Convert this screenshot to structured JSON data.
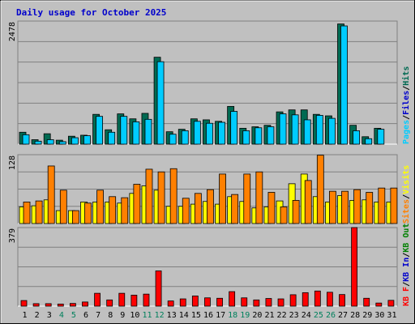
{
  "title": "Daily usage for October 2025",
  "colors": {
    "background": "#c0c0c0",
    "title": "#0000cc",
    "grid": "#808080",
    "pages": "#006a52",
    "files": "#0000cc",
    "hits": "#00ccff",
    "visits": "#ffff00",
    "sites": "#ff8000",
    "kbin": "#0000cc",
    "kbout": "#008000",
    "kbf": "#ff0000",
    "weekday_label": "#000000",
    "weekend_label": "#00805c"
  },
  "chart_data": [
    {
      "type": "bar",
      "title": "Daily usage for October 2025",
      "categories": [
        "1",
        "2",
        "3",
        "4",
        "5",
        "6",
        "7",
        "8",
        "9",
        "10",
        "11",
        "12",
        "13",
        "14",
        "15",
        "16",
        "17",
        "18",
        "19",
        "20",
        "21",
        "22",
        "23",
        "24",
        "25",
        "26",
        "27",
        "28",
        "29",
        "30",
        "31"
      ],
      "weekend_days": [
        "4",
        "5",
        "11",
        "12",
        "18",
        "19",
        "25",
        "26"
      ],
      "y_max_label": "2478",
      "ylim": [
        0,
        2478
      ],
      "legend": [
        "Pages",
        "Files",
        "Hits"
      ],
      "series": [
        {
          "name": "Pages",
          "values": [
            240,
            90,
            210,
            80,
            160,
            180,
            600,
            290,
            610,
            510,
            620,
            1750,
            250,
            300,
            510,
            490,
            460,
            760,
            320,
            350,
            380,
            650,
            690,
            690,
            600,
            570,
            2420,
            380,
            150,
            320,
            0
          ]
        },
        {
          "name": "Hits",
          "values": [
            190,
            60,
            90,
            50,
            130,
            170,
            560,
            240,
            560,
            450,
            500,
            1660,
            200,
            270,
            460,
            420,
            440,
            660,
            270,
            330,
            350,
            610,
            590,
            490,
            580,
            520,
            2380,
            270,
            110,
            300,
            0
          ]
        }
      ]
    },
    {
      "type": "bar",
      "categories": [
        "1",
        "2",
        "3",
        "4",
        "5",
        "6",
        "7",
        "8",
        "9",
        "10",
        "11",
        "12",
        "13",
        "14",
        "15",
        "16",
        "17",
        "18",
        "19",
        "20",
        "21",
        "22",
        "23",
        "24",
        "25",
        "26",
        "27",
        "28",
        "29",
        "30",
        "31"
      ],
      "y_max_label": "128",
      "ylim": [
        0,
        128
      ],
      "legend": [
        "Visits",
        "Sites"
      ],
      "series": [
        {
          "name": "Visits",
          "values": [
            31,
            33,
            44,
            24,
            24,
            40,
            40,
            40,
            38,
            56,
            70,
            62,
            32,
            32,
            36,
            41,
            36,
            50,
            41,
            29,
            31,
            42,
            74,
            92,
            50,
            40,
            52,
            43,
            44,
            40,
            40
          ]
        },
        {
          "name": "Sites",
          "values": [
            40,
            42,
            107,
            62,
            24,
            38,
            62,
            50,
            48,
            73,
            101,
            96,
            102,
            47,
            56,
            63,
            92,
            54,
            92,
            96,
            58,
            31,
            43,
            80,
            127,
            60,
            60,
            63,
            58,
            66,
            66
          ]
        }
      ]
    },
    {
      "type": "bar",
      "categories": [
        "1",
        "2",
        "3",
        "4",
        "5",
        "6",
        "7",
        "8",
        "9",
        "10",
        "11",
        "12",
        "13",
        "14",
        "15",
        "16",
        "17",
        "18",
        "19",
        "20",
        "21",
        "22",
        "23",
        "24",
        "25",
        "26",
        "27",
        "28",
        "29",
        "30",
        "31"
      ],
      "y_max_label": "379",
      "ylim": [
        0,
        379
      ],
      "legend": [
        "KB In",
        "KB Out",
        "KB F"
      ],
      "series": [
        {
          "name": "KB F",
          "values": [
            27,
            12,
            12,
            10,
            13,
            20,
            62,
            30,
            62,
            53,
            58,
            170,
            25,
            35,
            49,
            40,
            38,
            70,
            40,
            30,
            37,
            35,
            55,
            65,
            73,
            67,
            56,
            379,
            38,
            15,
            28
          ]
        }
      ]
    }
  ]
}
